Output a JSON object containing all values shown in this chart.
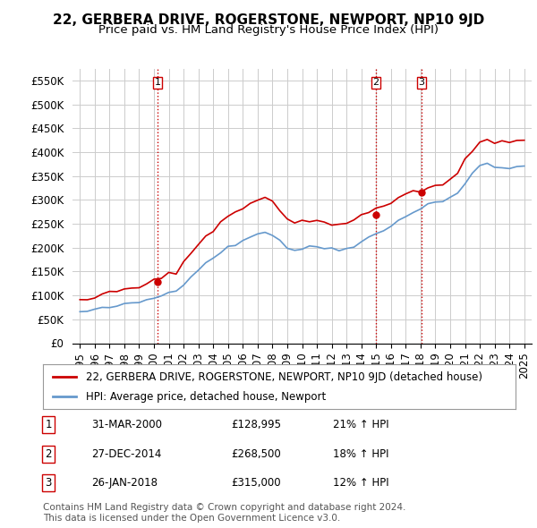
{
  "title": "22, GERBERA DRIVE, ROGERSTONE, NEWPORT, NP10 9JD",
  "subtitle": "Price paid vs. HM Land Registry's House Price Index (HPI)",
  "ylabel": "",
  "ylim": [
    0,
    575000
  ],
  "yticks": [
    0,
    50000,
    100000,
    150000,
    200000,
    250000,
    300000,
    350000,
    400000,
    450000,
    500000,
    550000
  ],
  "ytick_labels": [
    "£0",
    "£50K",
    "£100K",
    "£150K",
    "£200K",
    "£250K",
    "£300K",
    "£350K",
    "£400K",
    "£450K",
    "£500K",
    "£550K"
  ],
  "house_color": "#cc0000",
  "hpi_color": "#6699cc",
  "grid_color": "#cccccc",
  "background_color": "#ffffff",
  "legend_house": "22, GERBERA DRIVE, ROGERSTONE, NEWPORT, NP10 9JD (detached house)",
  "legend_hpi": "HPI: Average price, detached house, Newport",
  "sale_dates": [
    "2000-03-31",
    "2014-12-27",
    "2018-01-26"
  ],
  "sale_prices": [
    128995,
    268500,
    315000
  ],
  "sale_labels": [
    "1",
    "2",
    "3"
  ],
  "table_rows": [
    [
      "1",
      "31-MAR-2000",
      "£128,995",
      "21% ↑ HPI"
    ],
    [
      "2",
      "27-DEC-2014",
      "£268,500",
      "18% ↑ HPI"
    ],
    [
      "3",
      "26-JAN-2018",
      "£315,000",
      "12% ↑ HPI"
    ]
  ],
  "footer": "Contains HM Land Registry data © Crown copyright and database right 2024.\nThis data is licensed under the Open Government Licence v3.0.",
  "title_fontsize": 11,
  "subtitle_fontsize": 9.5,
  "tick_fontsize": 8.5,
  "legend_fontsize": 8.5,
  "table_fontsize": 8.5,
  "footer_fontsize": 7.5,
  "vline_color": "#cc0000",
  "vline_style": ":",
  "sale_marker_color": "#cc0000"
}
